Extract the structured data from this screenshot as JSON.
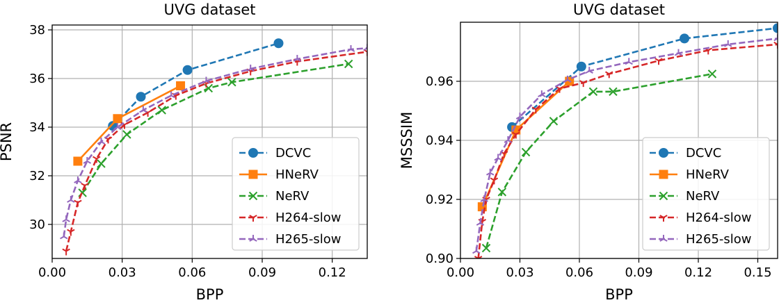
{
  "chart_data": [
    {
      "type": "line",
      "title": "UVG dataset",
      "xlabel": "BPP",
      "ylabel": "PSNR",
      "xlim": [
        0.0,
        0.135
      ],
      "ylim": [
        28.6,
        38.2
      ],
      "x_ticks": [
        "0.00",
        "0.03",
        "0.06",
        "0.09",
        "0.12"
      ],
      "x_tick_values": [
        0.0,
        0.03,
        0.06,
        0.09,
        0.12
      ],
      "y_ticks": [
        "30",
        "32",
        "34",
        "36",
        "38"
      ],
      "y_tick_values": [
        30,
        32,
        34,
        36,
        38
      ],
      "grid": true,
      "legend_position": "bottom-right",
      "series": [
        {
          "name": "DCVC",
          "color": "#1f77b4",
          "dash": "dashed",
          "marker": "circle",
          "x": [
            0.026,
            0.038,
            0.058,
            0.097
          ],
          "y": [
            34.05,
            35.25,
            36.35,
            37.45
          ]
        },
        {
          "name": "HNeRV",
          "color": "#ff7f0e",
          "dash": "solid",
          "marker": "square",
          "x": [
            0.011,
            0.028,
            0.055
          ],
          "y": [
            32.6,
            34.35,
            35.7
          ]
        },
        {
          "name": "NeRV",
          "color": "#2ca02c",
          "dash": "dashed",
          "marker": "x",
          "x": [
            0.013,
            0.021,
            0.032,
            0.047,
            0.067,
            0.077,
            0.127
          ],
          "y": [
            31.3,
            32.5,
            33.7,
            34.7,
            35.6,
            35.85,
            36.6
          ]
        },
        {
          "name": "H264-slow",
          "color": "#d62728",
          "dash": "dashed",
          "marker": "tri",
          "x": [
            0.006,
            0.008,
            0.011,
            0.014,
            0.019,
            0.024,
            0.031,
            0.041,
            0.053,
            0.066,
            0.085,
            0.105,
            0.135
          ],
          "y": [
            28.9,
            29.7,
            30.9,
            31.6,
            32.7,
            33.5,
            34.1,
            34.6,
            35.3,
            35.8,
            36.3,
            36.7,
            37.1
          ]
        },
        {
          "name": "H265-slow",
          "color": "#9467bd",
          "dash": "dashed",
          "marker": "tri-up",
          "x": [
            0.005,
            0.006,
            0.008,
            0.011,
            0.015,
            0.021,
            0.028,
            0.039,
            0.051,
            0.066,
            0.085,
            0.105,
            0.128,
            0.135
          ],
          "y": [
            29.5,
            30.2,
            31.0,
            31.8,
            32.6,
            33.4,
            34.0,
            34.7,
            35.3,
            35.9,
            36.4,
            36.8,
            37.2,
            37.25
          ]
        }
      ]
    },
    {
      "type": "line",
      "title": "UVG dataset",
      "xlabel": "BPP",
      "ylabel": "MSSSIM",
      "xlim": [
        0.0,
        0.16
      ],
      "ylim": [
        0.9,
        0.98
      ],
      "x_ticks": [
        "0.00",
        "0.03",
        "0.06",
        "0.09",
        "0.12",
        "0.15"
      ],
      "x_tick_values": [
        0.0,
        0.03,
        0.06,
        0.09,
        0.12,
        0.15
      ],
      "y_ticks": [
        "0.90",
        "0.92",
        "0.94",
        "0.96"
      ],
      "y_tick_values": [
        0.9,
        0.92,
        0.94,
        0.96
      ],
      "grid": true,
      "legend_position": "bottom-right",
      "series": [
        {
          "name": "DCVC",
          "color": "#1f77b4",
          "dash": "dashed",
          "marker": "circle",
          "x": [
            0.026,
            0.061,
            0.113,
            0.16
          ],
          "y": [
            0.9445,
            0.965,
            0.9745,
            0.978
          ]
        },
        {
          "name": "HNeRV",
          "color": "#ff7f0e",
          "dash": "solid",
          "marker": "square",
          "x": [
            0.011,
            0.028,
            0.055
          ],
          "y": [
            0.9175,
            0.9435,
            0.96
          ]
        },
        {
          "name": "NeRV",
          "color": "#2ca02c",
          "dash": "dashed",
          "marker": "x",
          "x": [
            0.013,
            0.021,
            0.033,
            0.047,
            0.067,
            0.077,
            0.127
          ],
          "y": [
            0.9035,
            0.9225,
            0.936,
            0.9465,
            0.9565,
            0.9565,
            0.9625
          ]
        },
        {
          "name": "H264-slow",
          "color": "#d62728",
          "dash": "dashed",
          "marker": "tri",
          "x": [
            0.009,
            0.011,
            0.013,
            0.017,
            0.022,
            0.028,
            0.038,
            0.05,
            0.062,
            0.075,
            0.1,
            0.125,
            0.16
          ],
          "y": [
            0.9,
            0.9125,
            0.92,
            0.9265,
            0.9355,
            0.942,
            0.9505,
            0.9575,
            0.9595,
            0.9625,
            0.967,
            0.9705,
            0.9725
          ]
        },
        {
          "name": "H265-slow",
          "color": "#9467bd",
          "dash": "dashed",
          "marker": "tri-up",
          "x": [
            0.008,
            0.01,
            0.012,
            0.015,
            0.019,
            0.024,
            0.03,
            0.041,
            0.054,
            0.065,
            0.085,
            0.11,
            0.135,
            0.16
          ],
          "y": [
            0.9025,
            0.912,
            0.92,
            0.929,
            0.934,
            0.94,
            0.948,
            0.9555,
            0.9605,
            0.9635,
            0.9665,
            0.9695,
            0.9725,
            0.9745
          ]
        }
      ]
    }
  ]
}
